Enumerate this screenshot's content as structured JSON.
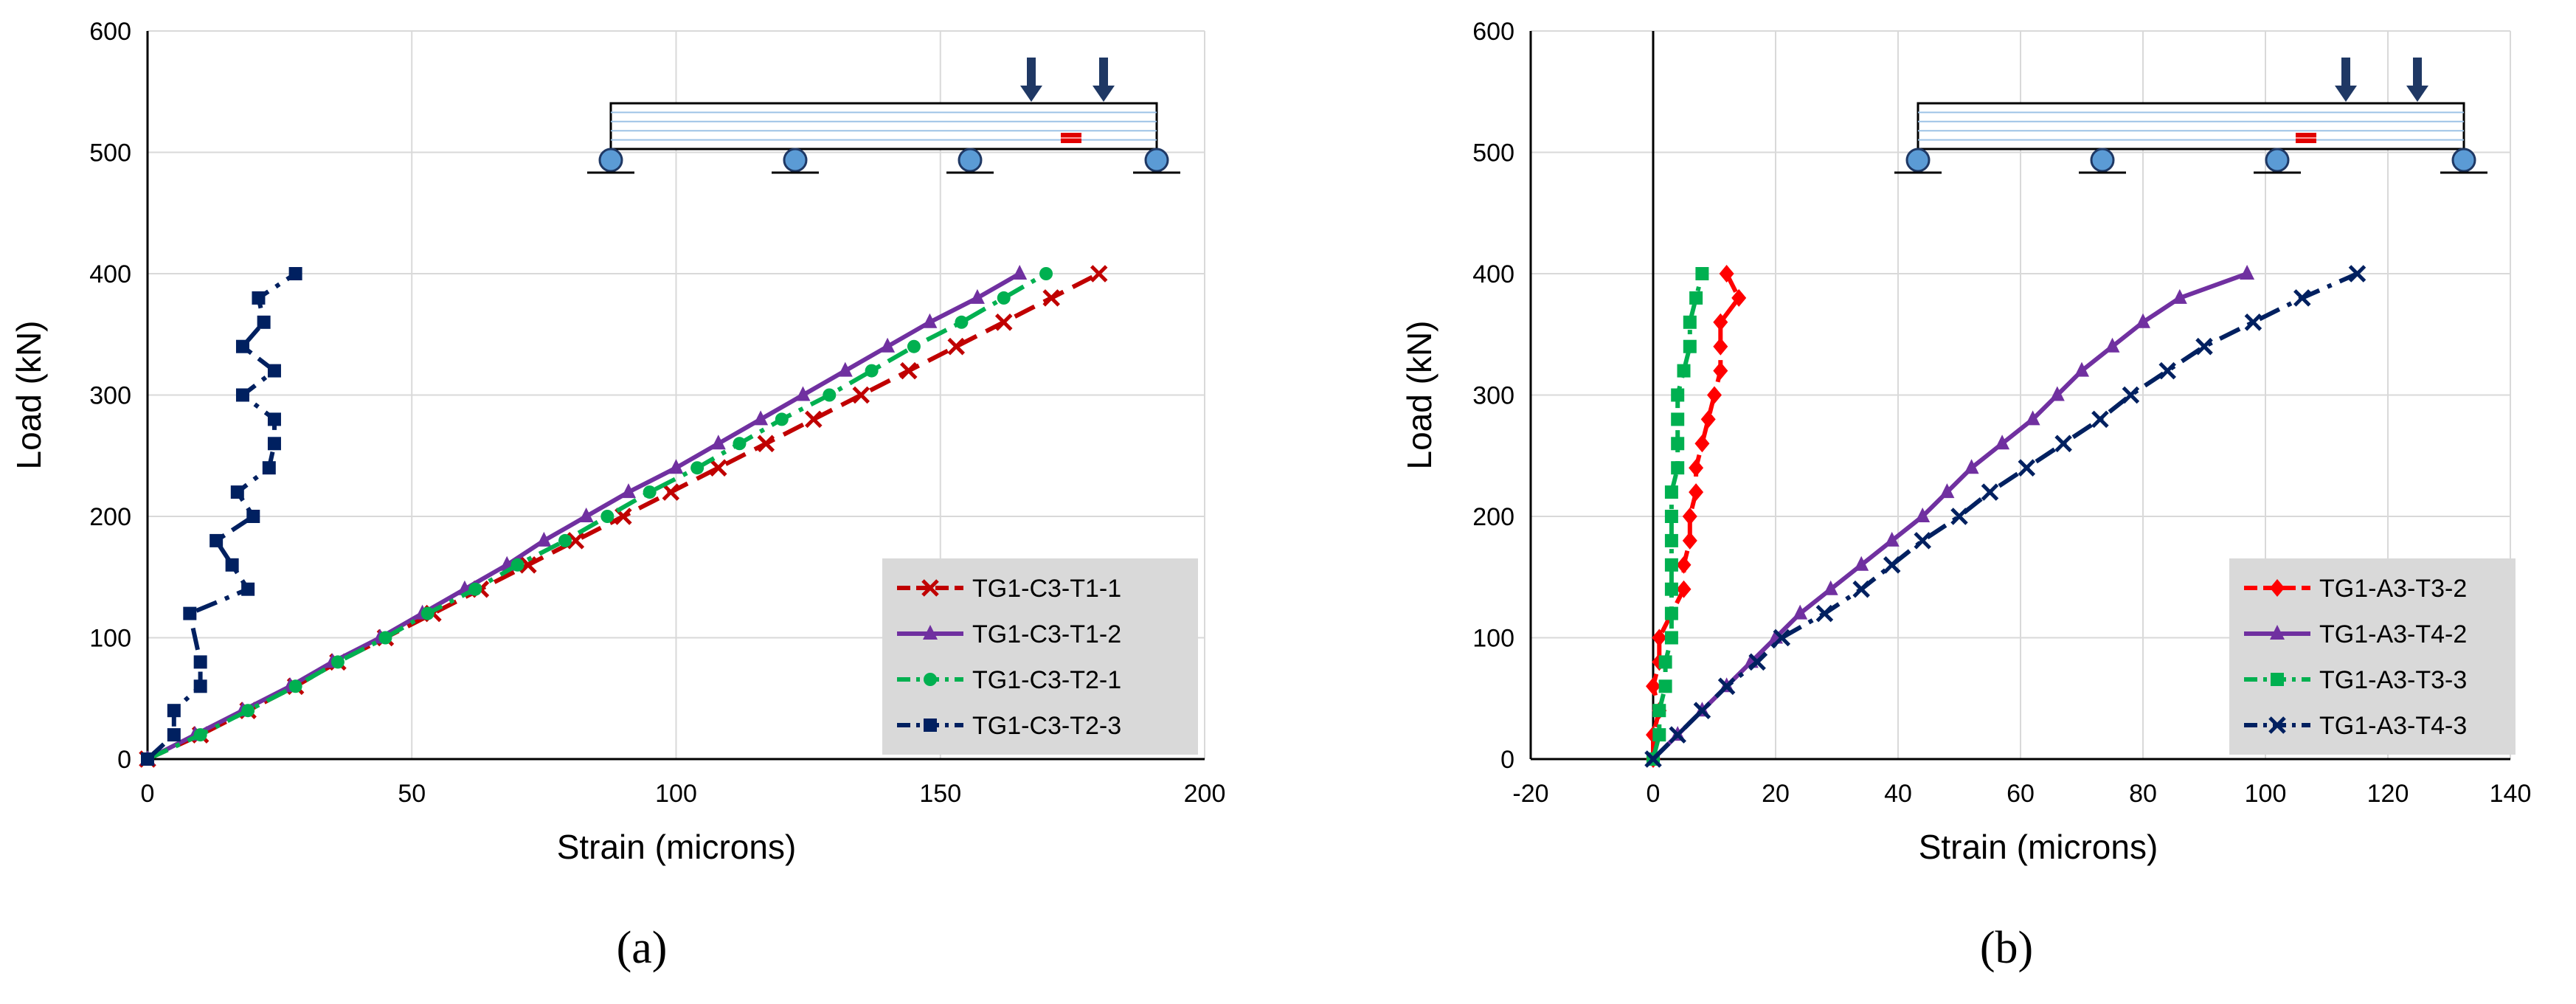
{
  "chart_data": [
    {
      "type": "line",
      "panel": "a",
      "caption": "(a)",
      "xlabel": "Strain (microns)",
      "ylabel": "Load (kN)",
      "xlim": [
        0,
        200
      ],
      "ylim": [
        0,
        600
      ],
      "xticks": [
        0,
        50,
        100,
        150,
        200
      ],
      "yticks": [
        0,
        100,
        200,
        300,
        400,
        500,
        600
      ],
      "grid": true,
      "legend_position": "bottom-right",
      "series": [
        {
          "name": "TG1-C3-T1-1",
          "color": "#C00000",
          "marker": "x",
          "dash": "dash",
          "points": [
            [
              0,
              0
            ],
            [
              10,
              20
            ],
            [
              19,
              40
            ],
            [
              28,
              60
            ],
            [
              36,
              80
            ],
            [
              45,
              100
            ],
            [
              54,
              120
            ],
            [
              63,
              140
            ],
            [
              72,
              160
            ],
            [
              81,
              180
            ],
            [
              90,
              200
            ],
            [
              99,
              220
            ],
            [
              108,
              240
            ],
            [
              117,
              260
            ],
            [
              126,
              280
            ],
            [
              135,
              300
            ],
            [
              144,
              320
            ],
            [
              153,
              340
            ],
            [
              162,
              360
            ],
            [
              171,
              380
            ],
            [
              180,
              400
            ]
          ]
        },
        {
          "name": "TG1-C3-T1-2",
          "color": "#7030A0",
          "marker": "triangle",
          "dash": "solid",
          "points": [
            [
              0,
              0
            ],
            [
              9,
              20
            ],
            [
              18,
              40
            ],
            [
              27,
              60
            ],
            [
              35,
              80
            ],
            [
              44,
              100
            ],
            [
              52,
              120
            ],
            [
              60,
              140
            ],
            [
              68,
              160
            ],
            [
              75,
              180
            ],
            [
              83,
              200
            ],
            [
              91,
              220
            ],
            [
              100,
              240
            ],
            [
              108,
              260
            ],
            [
              116,
              280
            ],
            [
              124,
              300
            ],
            [
              132,
              320
            ],
            [
              140,
              340
            ],
            [
              148,
              360
            ],
            [
              157,
              380
            ],
            [
              165,
              400
            ]
          ]
        },
        {
          "name": "TG1-C3-T2-1",
          "color": "#00B050",
          "marker": "circle",
          "dash": "dashdot",
          "points": [
            [
              0,
              0
            ],
            [
              10,
              20
            ],
            [
              19,
              40
            ],
            [
              28,
              60
            ],
            [
              36,
              80
            ],
            [
              45,
              100
            ],
            [
              53,
              120
            ],
            [
              62,
              140
            ],
            [
              70,
              160
            ],
            [
              79,
              180
            ],
            [
              87,
              200
            ],
            [
              95,
              220
            ],
            [
              104,
              240
            ],
            [
              112,
              260
            ],
            [
              120,
              280
            ],
            [
              129,
              300
            ],
            [
              137,
              320
            ],
            [
              145,
              340
            ],
            [
              154,
              360
            ],
            [
              162,
              380
            ],
            [
              170,
              400
            ]
          ]
        },
        {
          "name": "TG1-C3-T2-3",
          "color": "#002060",
          "marker": "square",
          "dash": "dashdot",
          "points": [
            [
              0,
              0
            ],
            [
              5,
              20
            ],
            [
              5,
              40
            ],
            [
              10,
              60
            ],
            [
              10,
              80
            ],
            [
              8,
              120
            ],
            [
              19,
              140
            ],
            [
              16,
              160
            ],
            [
              13,
              180
            ],
            [
              20,
              200
            ],
            [
              17,
              220
            ],
            [
              23,
              240
            ],
            [
              24,
              260
            ],
            [
              24,
              280
            ],
            [
              18,
              300
            ],
            [
              24,
              320
            ],
            [
              18,
              340
            ],
            [
              22,
              360
            ],
            [
              21,
              380
            ],
            [
              28,
              400
            ]
          ]
        }
      ]
    },
    {
      "type": "line",
      "panel": "b",
      "caption": "(b)",
      "xlabel": "Strain (microns)",
      "ylabel": "Load (kN)",
      "xlim": [
        -20,
        140
      ],
      "ylim": [
        0,
        600
      ],
      "xticks": [
        -20,
        0,
        20,
        40,
        60,
        80,
        100,
        120,
        140
      ],
      "yticks": [
        0,
        100,
        200,
        300,
        400,
        500,
        600
      ],
      "grid": true,
      "legend_position": "bottom-right",
      "series": [
        {
          "name": "TG1-A3-T3-2",
          "color": "#FF0000",
          "marker": "diamond",
          "dash": "dash",
          "points": [
            [
              0,
              0
            ],
            [
              0,
              20
            ],
            [
              1,
              40
            ],
            [
              0,
              60
            ],
            [
              1,
              80
            ],
            [
              1,
              100
            ],
            [
              5,
              140
            ],
            [
              5,
              160
            ],
            [
              6,
              180
            ],
            [
              6,
              200
            ],
            [
              7,
              220
            ],
            [
              7,
              240
            ],
            [
              8,
              260
            ],
            [
              9,
              280
            ],
            [
              10,
              300
            ],
            [
              11,
              320
            ],
            [
              11,
              340
            ],
            [
              11,
              360
            ],
            [
              14,
              380
            ],
            [
              12,
              400
            ]
          ]
        },
        {
          "name": "TG1-A3-T4-2",
          "color": "#7030A0",
          "marker": "triangle",
          "dash": "solid",
          "points": [
            [
              0,
              0
            ],
            [
              4,
              20
            ],
            [
              8,
              40
            ],
            [
              12,
              60
            ],
            [
              16,
              80
            ],
            [
              20,
              100
            ],
            [
              24,
              120
            ],
            [
              29,
              140
            ],
            [
              34,
              160
            ],
            [
              39,
              180
            ],
            [
              44,
              200
            ],
            [
              48,
              220
            ],
            [
              52,
              240
            ],
            [
              57,
              260
            ],
            [
              62,
              280
            ],
            [
              66,
              300
            ],
            [
              70,
              320
            ],
            [
              75,
              340
            ],
            [
              80,
              360
            ],
            [
              86,
              380
            ],
            [
              97,
              400
            ]
          ]
        },
        {
          "name": "TG1-A3-T3-3",
          "color": "#00B050",
          "marker": "square",
          "dash": "dashdot",
          "points": [
            [
              0,
              0
            ],
            [
              1,
              20
            ],
            [
              1,
              40
            ],
            [
              2,
              60
            ],
            [
              2,
              80
            ],
            [
              3,
              100
            ],
            [
              3,
              120
            ],
            [
              3,
              140
            ],
            [
              3,
              160
            ],
            [
              3,
              180
            ],
            [
              3,
              200
            ],
            [
              3,
              220
            ],
            [
              4,
              240
            ],
            [
              4,
              260
            ],
            [
              4,
              280
            ],
            [
              4,
              300
            ],
            [
              5,
              320
            ],
            [
              6,
              340
            ],
            [
              6,
              360
            ],
            [
              7,
              380
            ],
            [
              8,
              400
            ]
          ]
        },
        {
          "name": "TG1-A3-T4-3",
          "color": "#002060",
          "marker": "x",
          "dash": "dashdot",
          "points": [
            [
              0,
              0
            ],
            [
              4,
              20
            ],
            [
              8,
              40
            ],
            [
              12,
              60
            ],
            [
              17,
              80
            ],
            [
              21,
              100
            ],
            [
              28,
              120
            ],
            [
              34,
              140
            ],
            [
              39,
              160
            ],
            [
              44,
              180
            ],
            [
              50,
              200
            ],
            [
              55,
              220
            ],
            [
              61,
              240
            ],
            [
              67,
              260
            ],
            [
              73,
              280
            ],
            [
              78,
              300
            ],
            [
              84,
              320
            ],
            [
              90,
              340
            ],
            [
              98,
              360
            ],
            [
              106,
              380
            ],
            [
              115,
              400
            ]
          ]
        }
      ]
    }
  ]
}
